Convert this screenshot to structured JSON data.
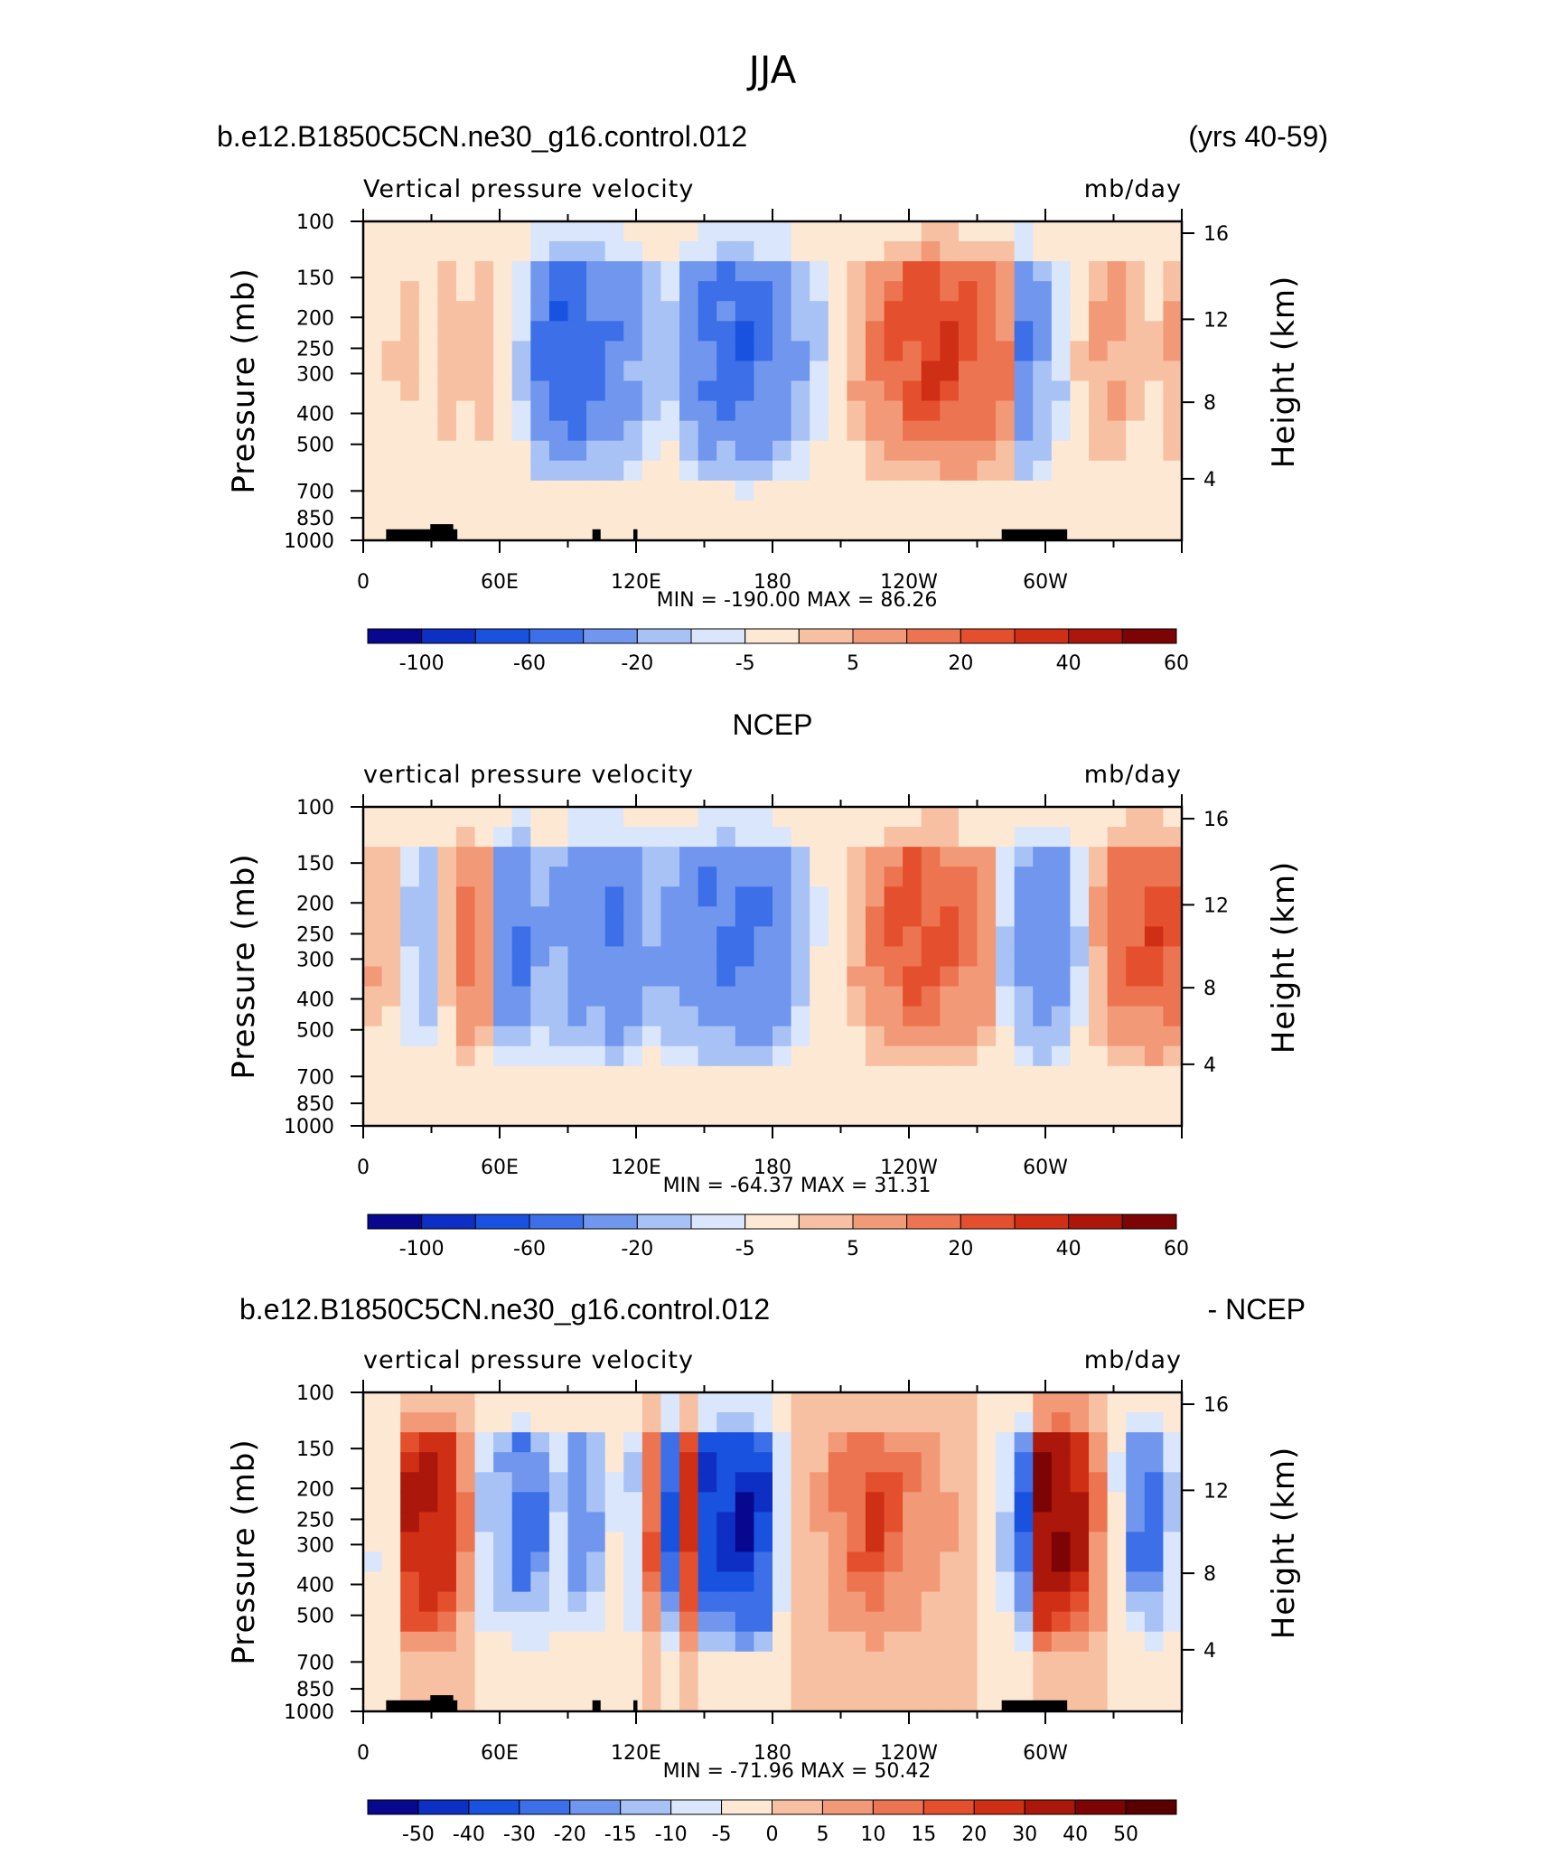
{
  "figure_title": "JJA",
  "colors": {
    "div11": [
      "#08088e",
      "#0d2fc4",
      "#1a52e0",
      "#3c6fe8",
      "#7096ee",
      "#a8c2f5",
      "#dae6fb",
      "#fde8d4",
      "#f8c0a2",
      "#f29a78",
      "#ec7450",
      "#e4502e",
      "#cf2f15",
      "#ab170a",
      "#7d0404"
    ],
    "diff15": [
      "#08088e",
      "#0d2fc4",
      "#1a52e0",
      "#3c6fe8",
      "#7096ee",
      "#a8c2f5",
      "#dae6fb",
      "#fde8d4",
      "#f8c0a2",
      "#f29a78",
      "#ec7450",
      "#e4502e",
      "#cf2f15",
      "#ab170a",
      "#7d0404",
      "#5a0000"
    ]
  },
  "chart_data": [
    {
      "type": "heatmap",
      "header_left": "b.e12.B1850C5CN.ne30_g16.control.012",
      "header_right": "(yrs 40-59)",
      "variable": "Vertical pressure velocity",
      "units": "mb/day",
      "ylabel": "Pressure (mb)",
      "ylabel_right": "Height (km)",
      "x_ticks": [
        "0",
        "60E",
        "120E",
        "180",
        "120W",
        "60W"
      ],
      "y_ticks": [
        "100",
        "150",
        "200",
        "250",
        "300",
        "400",
        "500",
        "700",
        "850",
        "1000"
      ],
      "y_ticks_right": [
        "16",
        "12",
        "8",
        "4"
      ],
      "min_label": "MIN = -190.00",
      "max_label": "MAX = 86.26",
      "colorbar_labels": [
        "-100",
        "-60",
        "-20",
        "-5",
        "5",
        "20",
        "40",
        "60"
      ],
      "profile": [
        3,
        5,
        7,
        4,
        9,
        6,
        8,
        4,
        -10,
        -40,
        -55,
        -60,
        -45,
        -35,
        -25,
        -15,
        -12,
        -30,
        -45,
        -50,
        -55,
        -45,
        -35,
        -20,
        -10,
        3,
        10,
        20,
        30,
        35,
        40,
        38,
        35,
        30,
        22,
        -40,
        -25,
        -10,
        5,
        10,
        12,
        8,
        5,
        10
      ]
    },
    {
      "type": "heatmap",
      "header_left": "NCEP",
      "header_right": "",
      "variable": "vertical pressure velocity",
      "units": "mb/day",
      "ylabel": "Pressure (mb)",
      "ylabel_right": "Height (km)",
      "x_ticks": [
        "0",
        "60E",
        "120E",
        "180",
        "120W",
        "60W"
      ],
      "y_ticks": [
        "100",
        "150",
        "200",
        "250",
        "300",
        "400",
        "500",
        "700",
        "850",
        "1000"
      ],
      "y_ticks_right": [
        "16",
        "12",
        "8",
        "4"
      ],
      "min_label": "MIN = -64.37",
      "max_label": "MAX = 31.31",
      "colorbar_labels": [
        "-100",
        "-60",
        "-20",
        "-5",
        "5",
        "20",
        "40",
        "60"
      ],
      "profile": [
        10,
        8,
        -10,
        -15,
        8,
        25,
        15,
        -30,
        -40,
        -20,
        -25,
        -35,
        -35,
        -40,
        -35,
        -20,
        -25,
        -30,
        -40,
        -45,
        -45,
        -40,
        -30,
        -15,
        -5,
        3,
        10,
        20,
        30,
        35,
        35,
        30,
        25,
        15,
        -10,
        -30,
        -35,
        -25,
        -10,
        10,
        25,
        30,
        35,
        30
      ]
    },
    {
      "type": "heatmap",
      "header_left": "b.e12.B1850C5CN.ne30_g16.control.012",
      "header_right": "- NCEP",
      "variable": "vertical pressure velocity",
      "units": "mb/day",
      "ylabel": "Pressure (mb)",
      "ylabel_right": "Height (km)",
      "x_ticks": [
        "0",
        "60E",
        "120E",
        "180",
        "120W",
        "60W"
      ],
      "y_ticks": [
        "100",
        "150",
        "200",
        "250",
        "300",
        "400",
        "500",
        "700",
        "850",
        "1000"
      ],
      "y_ticks_right": [
        "16",
        "12",
        "8",
        "4"
      ],
      "min_label": "MIN = -71.96",
      "max_label": "MAX = 50.42",
      "colorbar_labels": [
        "-50",
        "-40",
        "-30",
        "-20",
        "-15",
        "-10",
        "-5",
        "0",
        "5",
        "10",
        "15",
        "20",
        "30",
        "40",
        "50"
      ],
      "profile": [
        -5,
        -3,
        30,
        35,
        28,
        10,
        -10,
        -15,
        -25,
        -20,
        -10,
        -20,
        -15,
        -5,
        -10,
        15,
        -30,
        25,
        -40,
        -45,
        -50,
        -40,
        -10,
        2,
        5,
        10,
        15,
        20,
        15,
        10,
        8,
        5,
        3,
        -5,
        -10,
        -30,
        40,
        42,
        35,
        10,
        -5,
        -20,
        -25,
        -10
      ]
    }
  ]
}
